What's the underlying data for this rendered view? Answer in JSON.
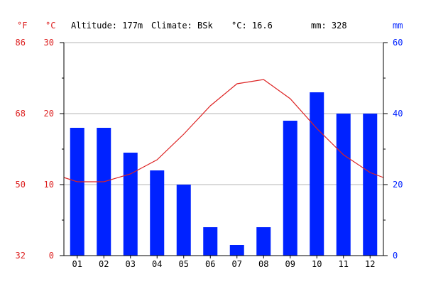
{
  "header": {
    "altitude": "Altitude: 177m",
    "climate": "Climate: BSk",
    "mean_temp": "°C: 16.6",
    "precip": "mm: 328"
  },
  "colors": {
    "temperature": "#dd2222",
    "precipitation": "#0022ff",
    "grid": "#b4b4b4",
    "axis": "#000000"
  },
  "chart_data": {
    "type": "bar",
    "categories": [
      "01",
      "02",
      "03",
      "04",
      "05",
      "06",
      "07",
      "08",
      "09",
      "10",
      "11",
      "12"
    ],
    "series": [
      {
        "type": "bar",
        "values": [
          36,
          36,
          29,
          24,
          20,
          8,
          3,
          8,
          38,
          46,
          40,
          40
        ],
        "axis": "right"
      },
      {
        "type": "line",
        "values": [
          10.4,
          10.4,
          11.5,
          13.5,
          17.1,
          21.1,
          24.2,
          24.8,
          22.1,
          17.9,
          14.2,
          11.7
        ],
        "axis": "left",
        "edge_start": 11.0,
        "edge_end": 11.0
      }
    ],
    "left_axis": {
      "unit": "°C",
      "ticks": [
        0,
        10,
        20,
        30
      ],
      "ylim": [
        0,
        30
      ]
    },
    "left_outer_axis": {
      "unit": "°F",
      "ticks": [
        "32",
        "50",
        "68",
        "86"
      ]
    },
    "right_axis": {
      "unit": "mm",
      "ticks": [
        0,
        20,
        40,
        60
      ],
      "ylim": [
        0,
        60
      ]
    },
    "grid": true
  }
}
